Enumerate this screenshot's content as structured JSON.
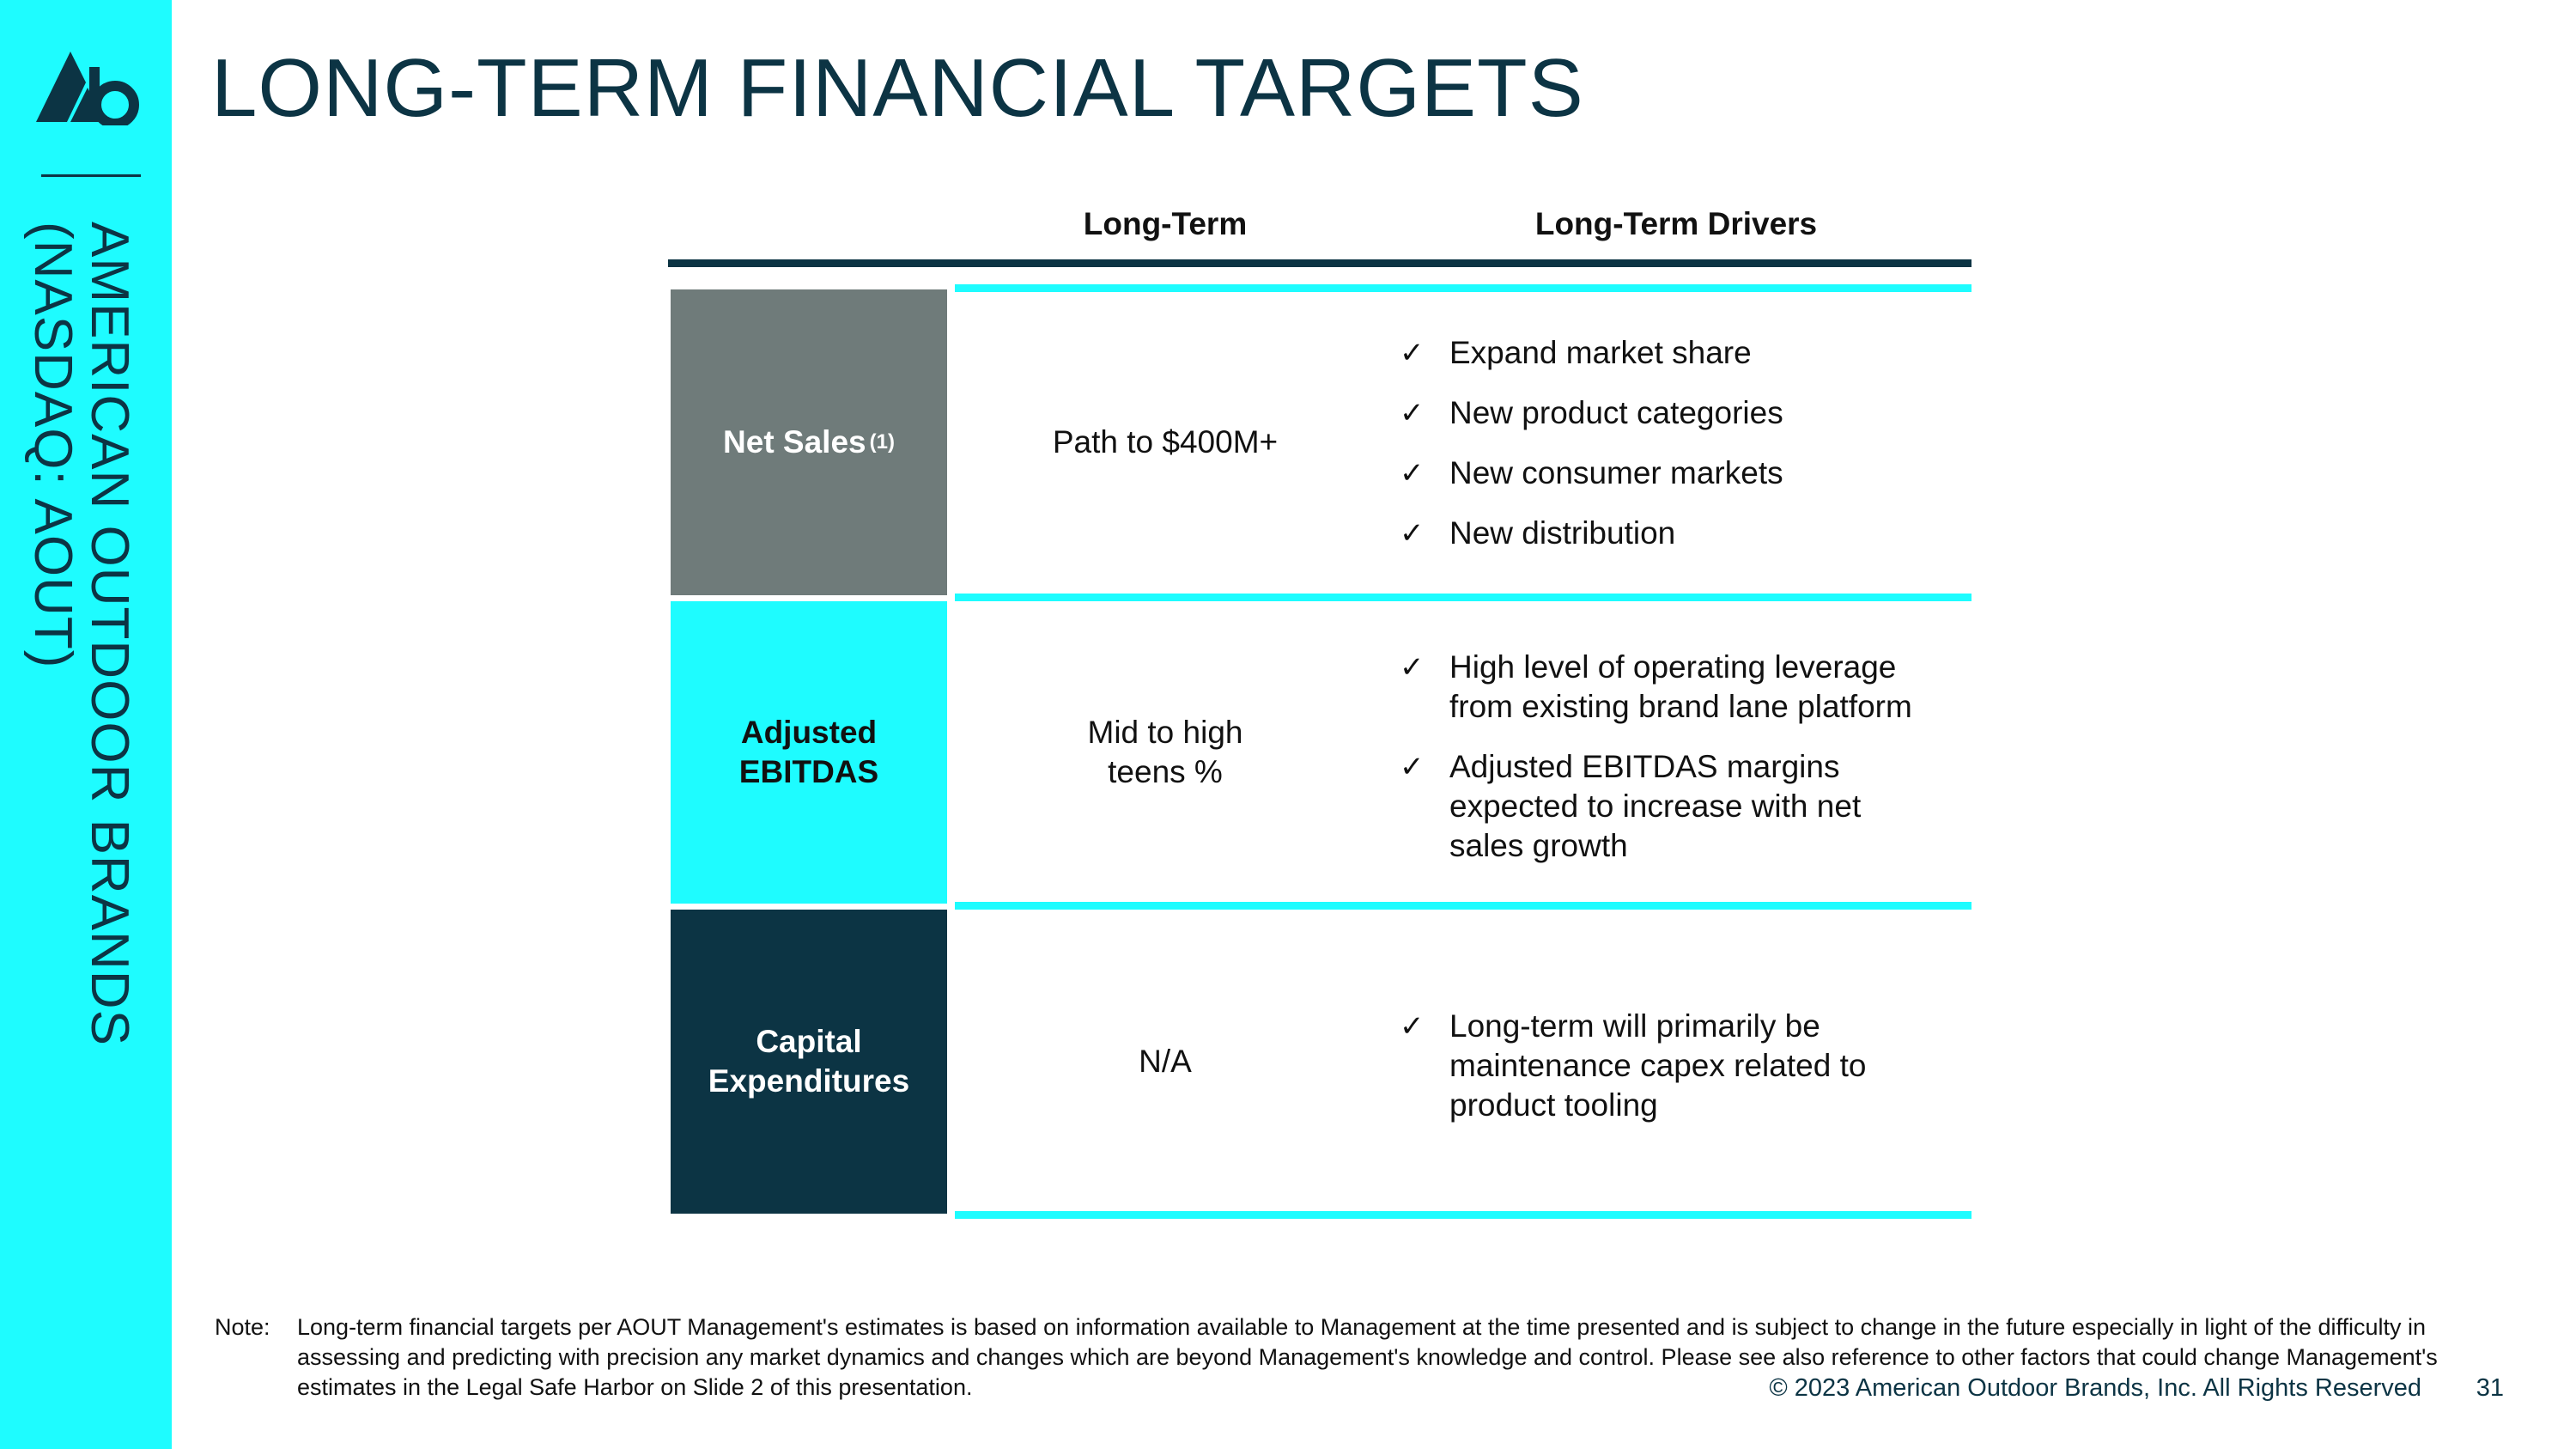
{
  "sidebar": {
    "company_ticker": "AMERICAN OUTDOOR BRANDS (NASDAQ: AOUT)"
  },
  "slide": {
    "title": "LONG-TERM FINANCIAL TARGETS"
  },
  "table": {
    "headers": [
      "Long-Term",
      "Long-Term Drivers"
    ],
    "rows": [
      {
        "label": "Net Sales",
        "footnote_ref": "(1)",
        "target": "Path to $400M+",
        "drivers": [
          "Expand market share",
          "New product categories",
          "New consumer markets",
          "New distribution"
        ]
      },
      {
        "label": "Adjusted EBITDAS",
        "target": "Mid to high teens %",
        "drivers": [
          "High level of operating leverage from existing brand lane platform",
          "Adjusted EBITDAS margins expected to increase with net sales growth"
        ]
      },
      {
        "label": "Capital Expenditures",
        "target": "N/A",
        "drivers": [
          "Long-term will primarily be maintenance capex related to product tooling"
        ]
      }
    ]
  },
  "note": {
    "label": "Note:",
    "text": "Long-term financial targets per AOUT Management's estimates is based on information available to Management at the time presented and is subject to change in the future especially in light of the difficulty in assessing and predicting with precision any market dynamics and changes which are beyond Management's knowledge and control. Please see also reference to other factors that could change Management's estimates in the Legal Safe Harbor on Slide 2 of this presentation."
  },
  "footer": {
    "copyright": "© 2023 American Outdoor Brands, Inc. All Rights Reserved",
    "page_number": "31"
  },
  "colors": {
    "accent_cyan": "#1efcff",
    "navy": "#0c3444",
    "gray": "#6f7b7a"
  },
  "icons": {
    "logo": "aob-logo-icon",
    "check": "check-icon"
  }
}
